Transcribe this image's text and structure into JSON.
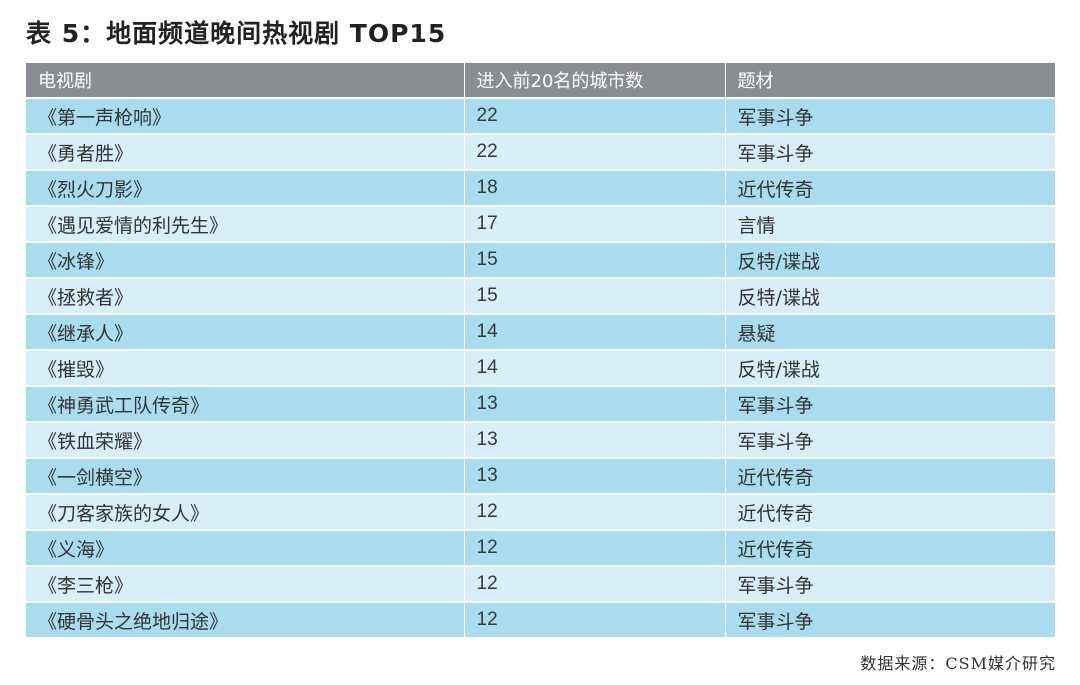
{
  "chart_data": {
    "type": "table",
    "title": "表 5：地面频道晚间热视剧 TOP15",
    "columns": [
      "电视剧",
      "进入前20名的城市数",
      "题材"
    ],
    "rows": [
      [
        "《第一声枪响》",
        22,
        "军事斗争"
      ],
      [
        "《勇者胜》",
        22,
        "军事斗争"
      ],
      [
        "《烈火刀影》",
        18,
        "近代传奇"
      ],
      [
        "《遇见爱情的利先生》",
        17,
        "言情"
      ],
      [
        "《冰锋》",
        15,
        "反特/谍战"
      ],
      [
        "《拯救者》",
        15,
        "反特/谍战"
      ],
      [
        "《继承人》",
        14,
        "悬疑"
      ],
      [
        "《摧毁》",
        14,
        "反特/谍战"
      ],
      [
        "《神勇武工队传奇》",
        13,
        "军事斗争"
      ],
      [
        "《铁血荣耀》",
        13,
        "军事斗争"
      ],
      [
        "《一剑横空》",
        13,
        "近代传奇"
      ],
      [
        "《刀客家族的女人》",
        12,
        "近代传奇"
      ],
      [
        "《义海》",
        12,
        "近代传奇"
      ],
      [
        "《李三枪》",
        12,
        "军事斗争"
      ],
      [
        "《硬骨头之绝地归途》",
        12,
        "军事斗争"
      ]
    ],
    "source": "数据来源：CSM媒介研究"
  },
  "colors": {
    "header_bg": "#8a8d91",
    "row_odd_bg": "#a9dcef",
    "row_even_bg": "#d7eff8"
  }
}
